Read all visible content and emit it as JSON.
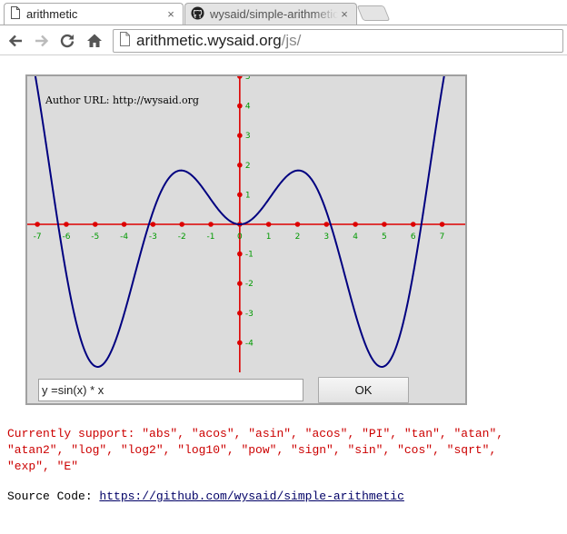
{
  "tabs": [
    {
      "title": "arithmetic",
      "active": true,
      "icon": "page-icon",
      "close": "×"
    },
    {
      "title": "wysaid/simple-arithmetic",
      "active": false,
      "icon": "github-icon",
      "close": "×"
    }
  ],
  "toolbar": {
    "url_host": "arithmetic.wysaid.org",
    "url_path": "/js/",
    "icons": [
      "back-arrow-icon",
      "forward-arrow-icon",
      "reload-icon",
      "home-icon",
      "page-icon"
    ]
  },
  "canvas": {
    "author_text": "Author URL: http://wysaid.org",
    "background": "#dcdcdc",
    "axis_color": "#dd0000",
    "tick_label_color": "#009900",
    "curve_color": "#000080"
  },
  "chart_data": {
    "type": "line",
    "expression": "y = sin(x) * x",
    "xlim": [
      -7.35,
      7.8
    ],
    "ylim": [
      -5.0,
      5.0
    ],
    "x_ticks": [
      -7,
      -6,
      -5,
      -4,
      -3,
      -2,
      -1,
      0,
      1,
      2,
      3,
      4,
      5,
      6,
      7
    ],
    "y_ticks": [
      -4,
      -3,
      -2,
      -1,
      1,
      2,
      3,
      4,
      5
    ],
    "x_tick_labels": [
      "-7",
      "-6",
      "-5",
      "-4",
      "-3",
      "-2",
      "-1",
      "0",
      "1",
      "2",
      "3",
      "4",
      "5",
      "6",
      "7"
    ],
    "y_tick_labels": [
      "-4",
      "-3",
      "-2",
      "-1",
      "1",
      "2",
      "3",
      "4",
      "5"
    ],
    "series": [
      {
        "x": [
          -7.3,
          -7.0,
          -6.5,
          -6.0,
          -5.5,
          -5.0,
          -4.5,
          -4.0,
          -3.5,
          -3.0,
          -2.5,
          -2.0,
          -1.5,
          -1.0,
          -0.5,
          0.0,
          0.5,
          1.0,
          1.5,
          2.0,
          2.5,
          3.0,
          3.5,
          4.0,
          4.5,
          5.0,
          5.5,
          6.0,
          6.5,
          7.0,
          7.3
        ],
        "y": [
          6.17,
          4.6,
          1.39,
          -1.68,
          -3.88,
          -4.79,
          -4.4,
          -3.03,
          -1.23,
          0.42,
          1.5,
          1.82,
          1.5,
          0.84,
          0.24,
          0.0,
          0.24,
          0.84,
          1.5,
          1.82,
          1.5,
          0.42,
          -1.23,
          -3.03,
          -4.4,
          -4.79,
          -3.88,
          -1.68,
          1.39,
          4.6,
          6.17
        ]
      }
    ],
    "grid": false
  },
  "form": {
    "input_value": "y =sin(x) * x",
    "ok_label": "OK"
  },
  "support_text": "Currently support: \"abs\", \"acos\", \"asin\", \"acos\", \"PI\", \"tan\", \"atan\",\n\"atan2\", \"log\", \"log2\", \"log10\", \"pow\", \"sign\", \"sin\", \"cos\", \"sqrt\",\n\"exp\", \"E\"",
  "source": {
    "label": "Source Code: ",
    "link_text": "https://github.com/wysaid/simple-arithmetic"
  }
}
